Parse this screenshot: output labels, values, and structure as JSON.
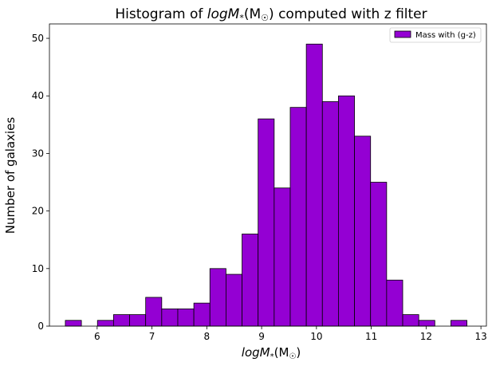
{
  "chart_data": {
    "type": "bar",
    "title_prefix": "Histogram of ",
    "title_math": "logM",
    "title_sub": "*",
    "title_paren": "(M",
    "title_sun": "☉",
    "title_close": ")",
    "title_suffix": " computed with z filter",
    "xlabel_math": "logM",
    "xlabel_sub": "*",
    "xlabel_paren": "(M",
    "xlabel_sun": "☉",
    "xlabel_close": ")",
    "ylabel": "Number of galaxies",
    "xlim": [
      5.13,
      13.1
    ],
    "ylim": [
      0,
      52.5
    ],
    "xticks": [
      6,
      7,
      8,
      9,
      10,
      11,
      12,
      13
    ],
    "yticks": [
      0,
      10,
      20,
      30,
      40,
      50
    ],
    "bin_width": 0.293,
    "bin_starts": [
      5.42,
      5.713,
      6.006,
      6.299,
      6.592,
      6.885,
      7.178,
      7.471,
      7.764,
      8.057,
      8.35,
      8.643,
      8.936,
      9.229,
      9.522,
      9.815,
      10.108,
      10.401,
      10.694,
      10.987,
      11.28,
      11.573,
      11.866,
      12.159,
      12.452
    ],
    "values": [
      1,
      0,
      1,
      2,
      2,
      5,
      3,
      3,
      4,
      10,
      9,
      16,
      36,
      24,
      38,
      49,
      39,
      40,
      33,
      25,
      8,
      2,
      1,
      0,
      1
    ],
    "series": [
      {
        "name": "Mass with (g-z)",
        "color": "#9400d3"
      }
    ],
    "edge_color": "#000000",
    "legend_position": "upper right",
    "grid": false
  }
}
